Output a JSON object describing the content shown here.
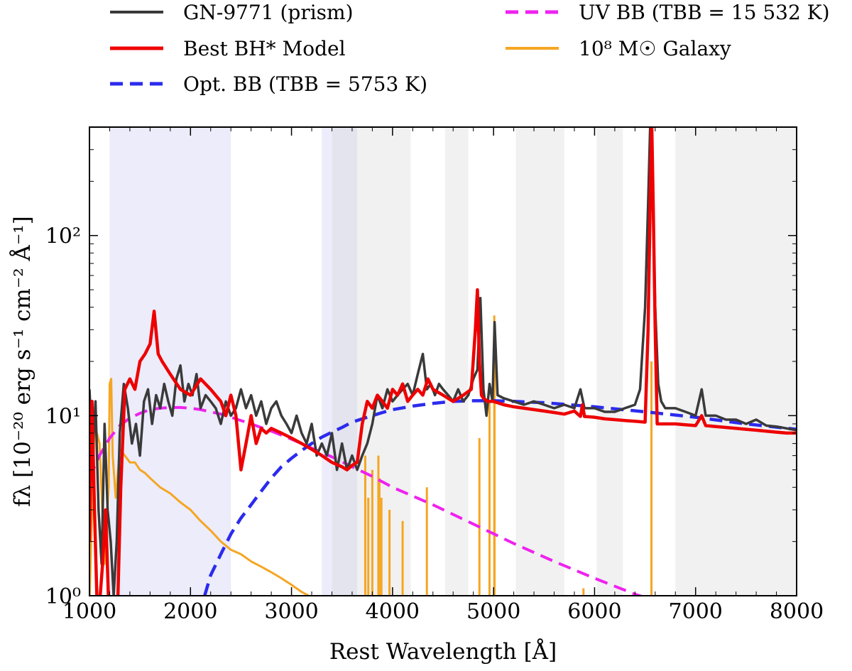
{
  "chart_data": {
    "type": "line",
    "title": "",
    "xlabel": "Rest Wavelength [Å]",
    "ylabel": "fλ [10⁻²⁰ erg s⁻¹ cm⁻² Å⁻¹]",
    "xlim": [
      1000,
      8000
    ],
    "ylim": [
      1,
      400
    ],
    "yscale": "log",
    "x_ticks": [
      1000,
      2000,
      3000,
      4000,
      5000,
      6000,
      7000,
      8000
    ],
    "x_tick_labels": [
      "1000",
      "2000",
      "3000",
      "4000",
      "5000",
      "6000",
      "7000",
      "8000"
    ],
    "y_ticks": [
      1,
      10,
      100
    ],
    "y_tick_labels": [
      "10⁰",
      "10¹",
      "10²"
    ],
    "shaded_regions_blue": [
      [
        1200,
        2400
      ],
      [
        3300,
        3650
      ]
    ],
    "shaded_regions_gray": [
      [
        3400,
        4180
      ],
      [
        4520,
        4750
      ],
      [
        5220,
        5700
      ],
      [
        6020,
        6280
      ],
      [
        6800,
        8000
      ]
    ],
    "legend": [
      {
        "label": "GN-9771 (prism)",
        "color": "#3a3a3a",
        "style": "solid"
      },
      {
        "label": "Best BH* Model",
        "color": "#ee0000",
        "style": "solid"
      },
      {
        "label": "Opt. BB (TBB = 5753 K)",
        "color": "#2b2bee",
        "style": "dashed"
      },
      {
        "label": "UV BB (TBB = 15 532 K)",
        "color": "#ee22ee",
        "style": "dashed"
      },
      {
        "label": "10⁸ M☉ Galaxy",
        "color": "#f5a623",
        "style": "solid"
      }
    ],
    "series": [
      {
        "name": "GN-9771 (prism)",
        "color": "#3a3a3a",
        "x": [
          1000,
          1030,
          1060,
          1090,
          1120,
          1150,
          1180,
          1210,
          1240,
          1270,
          1300,
          1340,
          1380,
          1420,
          1460,
          1500,
          1540,
          1580,
          1620,
          1660,
          1700,
          1740,
          1780,
          1820,
          1860,
          1900,
          1940,
          1980,
          2020,
          2060,
          2100,
          2150,
          2200,
          2250,
          2300,
          2350,
          2400,
          2450,
          2500,
          2550,
          2600,
          2650,
          2700,
          2750,
          2800,
          2850,
          2900,
          2950,
          3000,
          3050,
          3100,
          3150,
          3200,
          3250,
          3300,
          3350,
          3400,
          3450,
          3500,
          3550,
          3600,
          3650,
          3700,
          3750,
          3800,
          3850,
          3900,
          3950,
          4000,
          4050,
          4100,
          4150,
          4200,
          4250,
          4300,
          4340,
          4380,
          4420,
          4460,
          4500,
          4550,
          4600,
          4650,
          4700,
          4750,
          4800,
          4840,
          4870,
          4900,
          4930,
          4960,
          4990,
          5010,
          5040,
          5100,
          5200,
          5300,
          5400,
          5500,
          5600,
          5700,
          5800,
          5860,
          5900,
          6000,
          6100,
          6200,
          6300,
          6400,
          6450,
          6500,
          6530,
          6550,
          6565,
          6580,
          6600,
          6630,
          6660,
          6700,
          6800,
          6900,
          7000,
          7060,
          7100,
          7200,
          7300,
          7400,
          7500,
          7600,
          7700,
          7800,
          7900,
          8000
        ],
        "y": [
          14,
          6,
          12,
          3,
          1.5,
          9,
          3,
          2,
          1,
          2,
          8,
          15,
          11,
          7,
          9,
          6,
          12,
          14,
          9,
          13,
          11,
          15,
          12,
          10,
          16,
          19,
          12,
          15,
          13,
          17,
          11,
          13,
          12,
          11,
          9,
          12,
          10,
          11,
          14,
          11,
          13,
          10,
          12,
          9,
          11,
          12,
          10,
          9,
          8,
          10,
          8,
          7,
          9,
          6,
          7,
          6,
          8,
          5,
          7,
          5,
          6,
          5,
          6,
          7,
          9,
          13,
          11,
          14,
          12,
          13,
          14,
          15,
          13,
          17,
          22,
          14,
          15,
          13,
          15,
          14,
          13,
          12,
          14,
          12,
          13,
          16,
          18,
          45,
          14,
          10,
          15,
          12,
          33,
          13,
          12.5,
          12,
          11.5,
          12,
          11.5,
          11,
          11.5,
          11,
          14,
          11,
          11,
          10.5,
          10.5,
          11,
          11.5,
          14,
          40,
          150,
          400,
          300,
          130,
          40,
          15,
          12,
          11,
          11,
          10.5,
          10,
          14,
          10,
          10,
          9.5,
          9.5,
          9,
          9.5,
          8.8,
          8.7,
          8.5,
          8.3
        ]
      },
      {
        "name": "Best BH* Model",
        "color": "#ee0000",
        "x": [
          1000,
          1025,
          1050,
          1075,
          1100,
          1130,
          1160,
          1190,
          1220,
          1250,
          1280,
          1310,
          1350,
          1400,
          1450,
          1500,
          1550,
          1600,
          1640,
          1680,
          1720,
          1800,
          1900,
          2000,
          2100,
          2200,
          2300,
          2350,
          2400,
          2450,
          2500,
          2550,
          2600,
          2650,
          2700,
          2750,
          2800,
          2900,
          3000,
          3100,
          3200,
          3300,
          3400,
          3500,
          3550,
          3600,
          3650,
          3700,
          3750,
          3800,
          3850,
          3900,
          3950,
          4000,
          4050,
          4100,
          4150,
          4200,
          4250,
          4300,
          4350,
          4400,
          4500,
          4600,
          4700,
          4780,
          4820,
          4840,
          4860,
          4880,
          4900,
          4940,
          5000,
          5100,
          5200,
          5300,
          5400,
          5500,
          5600,
          5700,
          5800,
          5860,
          5880,
          5900,
          6000,
          6100,
          6200,
          6300,
          6400,
          6500,
          6530,
          6550,
          6565,
          6580,
          6600,
          6620,
          6650,
          6700,
          6800,
          6900,
          7000,
          7060,
          7100,
          7200,
          7300,
          7400,
          7500,
          7600,
          7700,
          7800,
          7900,
          8000
        ],
        "y": [
          2,
          12,
          3,
          0.9,
          0.9,
          1.5,
          3,
          0.9,
          0.9,
          0.9,
          0.9,
          4,
          14,
          16,
          14,
          20,
          22,
          25,
          38,
          22,
          20,
          17,
          14,
          13,
          16,
          14,
          12,
          10,
          13,
          10,
          5,
          7,
          10,
          7,
          8.5,
          8,
          8.5,
          8,
          7.5,
          7,
          6.5,
          6,
          5.5,
          5.2,
          5,
          5.3,
          5.5,
          9,
          12,
          11,
          13,
          12,
          11,
          14,
          13,
          15,
          12,
          13,
          14,
          13,
          16,
          14,
          13,
          12,
          13,
          14,
          30,
          50,
          20,
          13,
          12.5,
          12,
          12,
          11.5,
          11.2,
          11,
          10.8,
          10.6,
          10.4,
          10.2,
          10.6,
          9.9,
          11.5,
          9.9,
          9.8,
          9.6,
          9.5,
          9.4,
          9.3,
          9.2,
          30,
          150,
          450,
          150,
          30,
          9,
          9,
          9,
          9,
          8.9,
          8.8,
          10,
          8.8,
          8.7,
          8.6,
          8.5,
          8.4,
          8.3,
          8.2,
          8.1,
          8.0,
          8.0
        ]
      },
      {
        "name": "Opt. BB",
        "color": "#2b2bee",
        "x": [
          2140,
          2200,
          2300,
          2400,
          2500,
          2600,
          2700,
          2800,
          2900,
          3000,
          3100,
          3200,
          3300,
          3400,
          3500,
          3600,
          3700,
          3800,
          3900,
          4000,
          4200,
          4400,
          4600,
          4800,
          5000,
          5200,
          5500,
          6000,
          6500,
          7000,
          7500,
          8000
        ],
        "y": [
          1,
          1.3,
          1.7,
          2.2,
          2.7,
          3.2,
          3.8,
          4.5,
          5.2,
          5.8,
          6.4,
          7.0,
          7.6,
          8.1,
          8.6,
          9.2,
          9.6,
          10.0,
          10.4,
          10.8,
          11.3,
          11.7,
          12.0,
          12.1,
          12.1,
          12.0,
          11.8,
          11.2,
          10.5,
          9.8,
          9.0,
          8.4
        ]
      },
      {
        "name": "UV BB",
        "color": "#ee22ee",
        "x": [
          1000,
          1100,
          1200,
          1300,
          1400,
          1500,
          1600,
          1700,
          1800,
          1900,
          2000,
          2100,
          2200,
          2300,
          2400,
          2600,
          2800,
          3000,
          3200,
          3400,
          3600,
          3800,
          4000,
          4400,
          4800,
          5200,
          5600,
          6000,
          6400,
          6700
        ],
        "y": [
          4.5,
          6,
          7.5,
          8.8,
          9.7,
          10.3,
          10.8,
          11,
          11.1,
          11.1,
          11,
          10.8,
          10.5,
          10.2,
          9.8,
          9.0,
          8.2,
          7.4,
          6.6,
          5.9,
          5.2,
          4.6,
          4.0,
          3.2,
          2.5,
          1.95,
          1.55,
          1.25,
          1.02,
          0.9
        ]
      },
      {
        "name": "10⁸ M☉ Galaxy",
        "color": "#f5a623",
        "x": [
          1000,
          1050,
          1100,
          1150,
          1190,
          1200,
          1215,
          1230,
          1260,
          1300,
          1350,
          1400,
          1450,
          1500,
          1550,
          1600,
          1700,
          1800,
          1900,
          2000,
          2100,
          2200,
          2300,
          2400,
          2500,
          2600,
          2700,
          2800,
          2900,
          3000,
          3100,
          3200,
          3300
        ],
        "y": [
          0.9,
          9,
          7,
          1.5,
          4,
          15,
          16,
          6,
          3.5,
          6.5,
          6,
          5.5,
          5.5,
          5.0,
          4.8,
          4.5,
          4.0,
          3.7,
          3.3,
          3.0,
          2.6,
          2.3,
          2.0,
          1.8,
          1.7,
          1.55,
          1.45,
          1.35,
          1.25,
          1.15,
          1.05,
          0.98,
          0.9
        ],
        "spikes": [
          [
            3730,
            6
          ],
          [
            3760,
            3.5
          ],
          [
            3800,
            5
          ],
          [
            3860,
            6
          ],
          [
            3870,
            4.5
          ],
          [
            3890,
            3.5
          ],
          [
            3970,
            3
          ],
          [
            4100,
            2.6
          ],
          [
            4340,
            4
          ],
          [
            4860,
            7.5
          ],
          [
            4960,
            12
          ],
          [
            5007,
            36
          ],
          [
            5010,
            30
          ],
          [
            6563,
            20
          ],
          [
            5890,
            1.1
          ]
        ]
      }
    ]
  }
}
